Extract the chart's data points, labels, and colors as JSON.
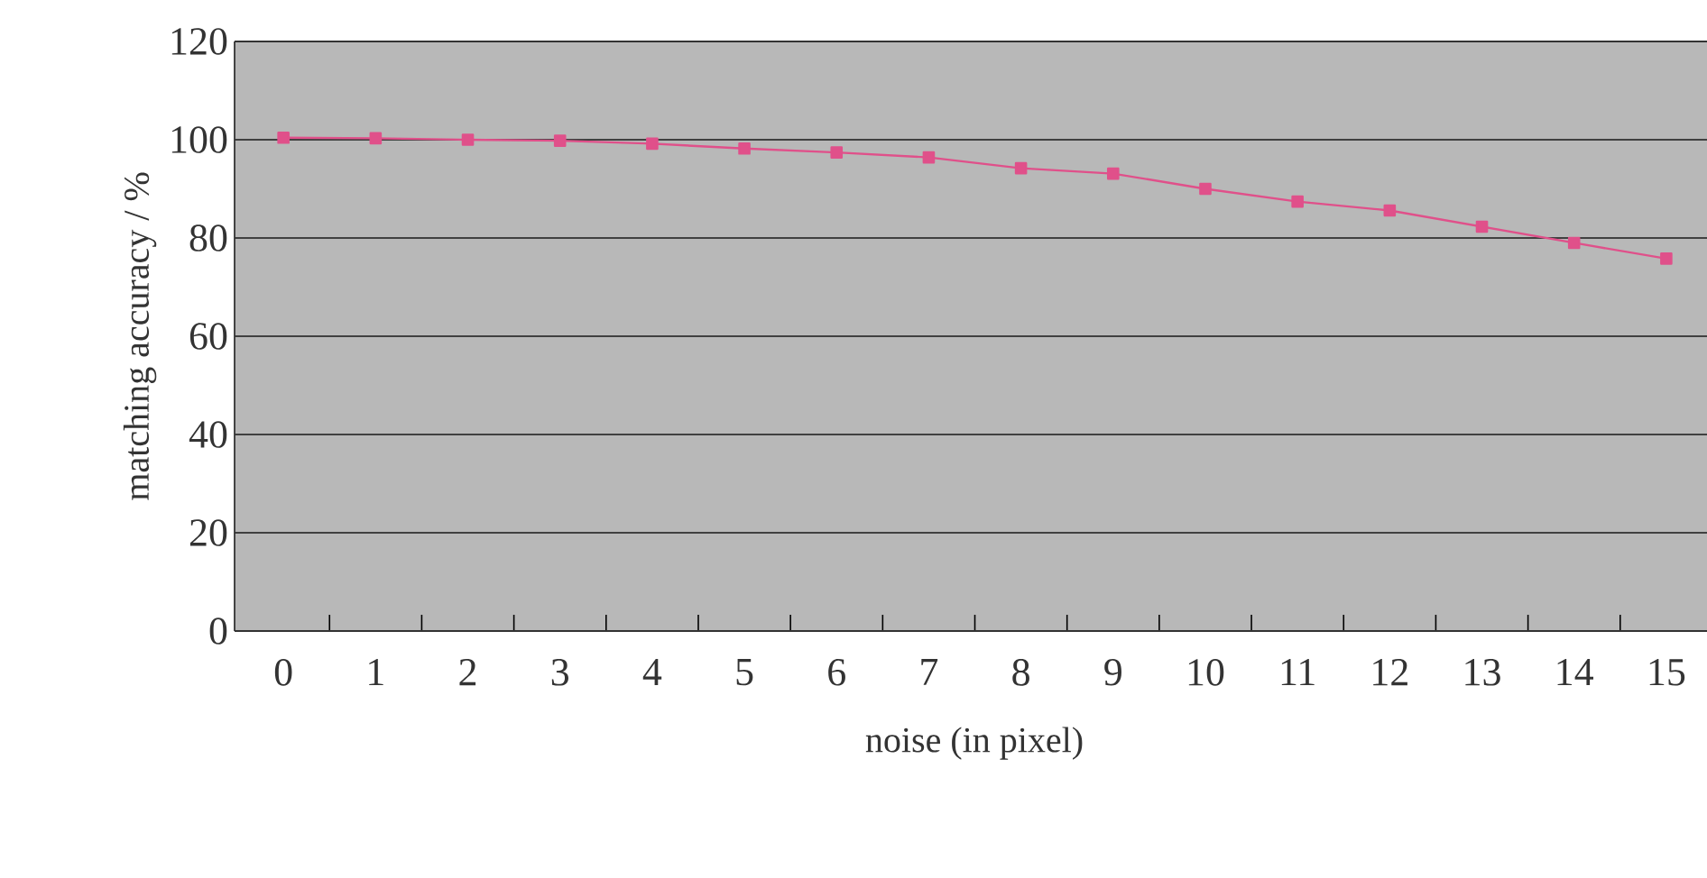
{
  "chart_data": {
    "type": "line",
    "xlabel": "noise (in pixel)",
    "ylabel": "matching accuracy / %",
    "categories": [
      "0",
      "1",
      "2",
      "3",
      "4",
      "5",
      "6",
      "7",
      "8",
      "9",
      "10",
      "11",
      "12",
      "13",
      "14",
      "15"
    ],
    "series": [
      {
        "color": "#e0508a",
        "values": [
          100.4,
          100.3,
          100,
          99.8,
          99.2,
          98.2,
          97.4,
          96.4,
          94.2,
          93.1,
          90,
          87.4,
          85.6,
          82.3,
          79,
          75.8
        ]
      }
    ],
    "ylim": [
      0,
      120
    ],
    "yticks": [
      0,
      20,
      40,
      60,
      80,
      100,
      120
    ],
    "grid": "y",
    "marker": "square",
    "line_style": "solid"
  }
}
